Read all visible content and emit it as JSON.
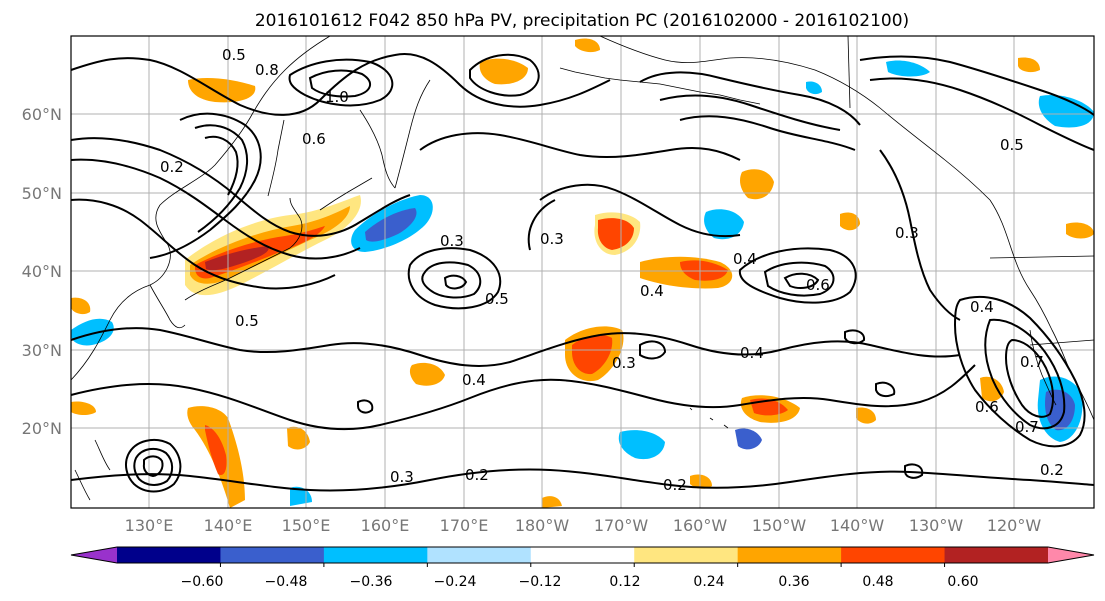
{
  "title": "2016101612 F042 850 hPa PV, precipitation PC (2016102000 - 2016102100)",
  "lat_labels": [
    "60°N",
    "50°N",
    "40°N",
    "30°N",
    "20°N"
  ],
  "lon_labels": [
    "130°E",
    "140°E",
    "150°E",
    "160°E",
    "170°E",
    "180°W",
    "170°W",
    "160°W",
    "150°W",
    "140°W",
    "130°W",
    "120°W"
  ],
  "contour_labels": [
    "0.5",
    "0.8",
    "1.0",
    "0.6",
    "0.2",
    "0.3",
    "0.4",
    "0.5",
    "0.3",
    "0.6",
    "0.4",
    "0.7",
    "0.2",
    "0.3",
    "0.5",
    "0.4",
    "0.6",
    "0.7",
    "0.5",
    "0.3",
    "0.4",
    "0.2",
    "0.3",
    "0.2",
    "0.4"
  ],
  "colorbar": {
    "tick_labels": [
      "−0.60",
      "−0.48",
      "−0.36",
      "−0.24",
      "−0.12",
      "0.12",
      "0.24",
      "0.36",
      "0.48",
      "0.60"
    ],
    "colors": [
      "#9932cc",
      "#00008b",
      "#3a5fcd",
      "#00bfff",
      "#b0e2ff",
      "#ffffff",
      "#ffe680",
      "#ffa500",
      "#ff4500",
      "#b22222",
      "#ff88aa"
    ]
  },
  "shading_colors": {
    "neg_strong": "#3a5fcd",
    "neg_mid": "#00bfff",
    "neg_weak": "#b0e2ff",
    "pos_weak": "#ffe680",
    "pos_mid": "#ffa500",
    "pos_strong": "#ff4500",
    "pos_max": "#b22222"
  }
}
